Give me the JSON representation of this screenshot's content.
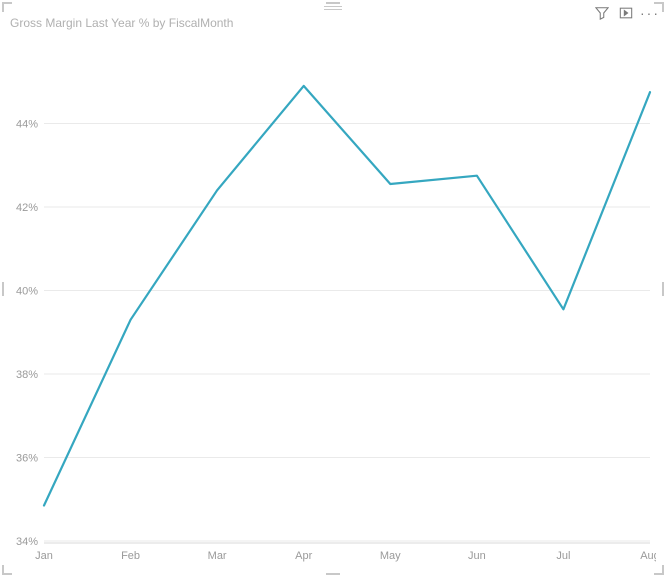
{
  "title": "Gross Margin Last Year % by FiscalMonth",
  "toolbar": {
    "filter_tooltip": "Filters",
    "focus_tooltip": "Focus mode",
    "more_tooltip": "More options"
  },
  "chart": {
    "type": "line",
    "categories": [
      "Jan",
      "Feb",
      "Mar",
      "Apr",
      "May",
      "Jun",
      "Jul",
      "Aug"
    ],
    "values": [
      34.85,
      39.3,
      42.4,
      44.9,
      42.55,
      42.75,
      39.55,
      44.75
    ],
    "line_color": "#35a7c0",
    "line_width": 2.2,
    "background_color": "#ffffff",
    "grid_color": "#eaeaea",
    "axis_color": "#d8d8d8",
    "tick_label_color": "#9a9a9a",
    "title_color": "#b0b0b0",
    "tick_fontsize": 11,
    "title_fontsize": 12,
    "ylim": [
      34,
      46
    ],
    "yticks": [
      34,
      36,
      38,
      40,
      42,
      44
    ],
    "ytick_format": "{v}%"
  },
  "frame": {
    "corner_color": "#c8c8c8"
  }
}
